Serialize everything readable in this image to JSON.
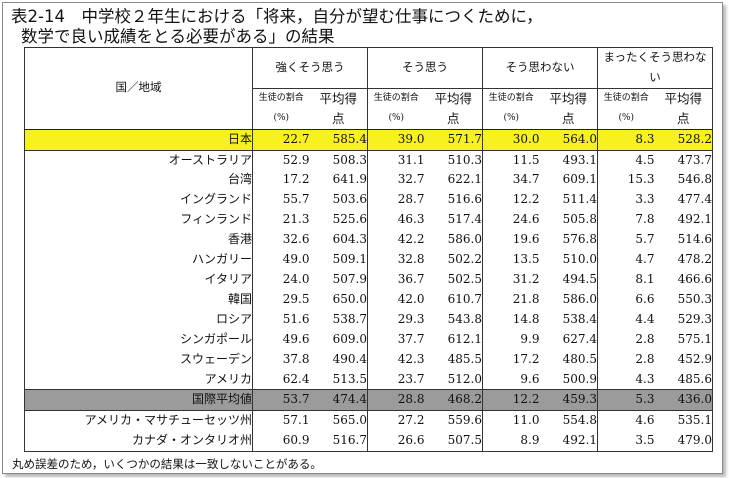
{
  "title": {
    "line1": "表2-14　中学校２年生における「将来，自分が望む仕事につくために，",
    "line2": "数学で良い成績をとる必要がある」の結果"
  },
  "table": {
    "country_header": "国／地域",
    "categories": [
      "強くそう思う",
      "そう思う",
      "そう思わない",
      "まったくそう思わない"
    ],
    "subheaders": {
      "pct_label": "生徒の割合(%)",
      "score_label": "平均得点"
    },
    "rows": [
      {
        "country": "日本",
        "values": [
          "22.7",
          "585.4",
          "39.0",
          "571.7",
          "30.0",
          "564.0",
          "8.3",
          "528.2"
        ],
        "style": "highlight"
      },
      {
        "country": "オーストラリア",
        "values": [
          "52.9",
          "508.3",
          "31.1",
          "510.3",
          "11.5",
          "493.1",
          "4.5",
          "473.7"
        ],
        "style": "normal"
      },
      {
        "country": "台湾",
        "values": [
          "17.2",
          "641.9",
          "32.7",
          "622.1",
          "34.7",
          "609.1",
          "15.3",
          "546.8"
        ],
        "style": "normal"
      },
      {
        "country": "イングランド",
        "values": [
          "55.7",
          "503.6",
          "28.7",
          "516.6",
          "12.2",
          "511.4",
          "3.3",
          "477.4"
        ],
        "style": "normal"
      },
      {
        "country": "フィンランド",
        "values": [
          "21.3",
          "525.6",
          "46.3",
          "517.4",
          "24.6",
          "505.8",
          "7.8",
          "492.1"
        ],
        "style": "normal"
      },
      {
        "country": "香港",
        "values": [
          "32.6",
          "604.3",
          "42.2",
          "586.0",
          "19.6",
          "576.8",
          "5.7",
          "514.6"
        ],
        "style": "normal"
      },
      {
        "country": "ハンガリー",
        "values": [
          "49.0",
          "509.1",
          "32.8",
          "502.2",
          "13.5",
          "510.0",
          "4.7",
          "478.2"
        ],
        "style": "normal"
      },
      {
        "country": "イタリア",
        "values": [
          "24.0",
          "507.9",
          "36.7",
          "502.5",
          "31.2",
          "494.5",
          "8.1",
          "466.6"
        ],
        "style": "normal"
      },
      {
        "country": "韓国",
        "values": [
          "29.5",
          "650.0",
          "42.0",
          "610.7",
          "21.8",
          "586.0",
          "6.6",
          "550.3"
        ],
        "style": "normal"
      },
      {
        "country": "ロシア",
        "values": [
          "51.6",
          "538.7",
          "29.3",
          "543.8",
          "14.8",
          "538.4",
          "4.4",
          "529.3"
        ],
        "style": "normal"
      },
      {
        "country": "シンガポール",
        "values": [
          "49.6",
          "609.0",
          "37.7",
          "612.1",
          "9.9",
          "627.4",
          "2.8",
          "575.1"
        ],
        "style": "normal"
      },
      {
        "country": "スウェーデン",
        "values": [
          "37.8",
          "490.4",
          "42.3",
          "485.5",
          "17.2",
          "480.5",
          "2.8",
          "452.9"
        ],
        "style": "normal"
      },
      {
        "country": "アメリカ",
        "values": [
          "62.4",
          "513.5",
          "23.7",
          "512.0",
          "9.6",
          "500.9",
          "4.3",
          "485.6"
        ],
        "style": "normal"
      },
      {
        "country": "国際平均値",
        "values": [
          "53.7",
          "474.4",
          "28.8",
          "468.2",
          "12.2",
          "459.3",
          "5.3",
          "436.0"
        ],
        "style": "gray"
      },
      {
        "country": "アメリカ・マサチューセッツ州",
        "values": [
          "57.1",
          "565.0",
          "27.2",
          "559.6",
          "11.0",
          "554.8",
          "4.6",
          "535.1"
        ],
        "style": "normal"
      },
      {
        "country": "カナダ・オンタリオ州",
        "values": [
          "60.9",
          "516.7",
          "26.6",
          "507.5",
          "8.9",
          "492.1",
          "3.5",
          "479.0"
        ],
        "style": "normal"
      }
    ]
  },
  "footer": {
    "note": "丸め誤差のため，いくつかの結果は一致しないことがある。"
  },
  "colors": {
    "highlight": "#f7f21f",
    "gray_row": "#9b9b9b"
  }
}
